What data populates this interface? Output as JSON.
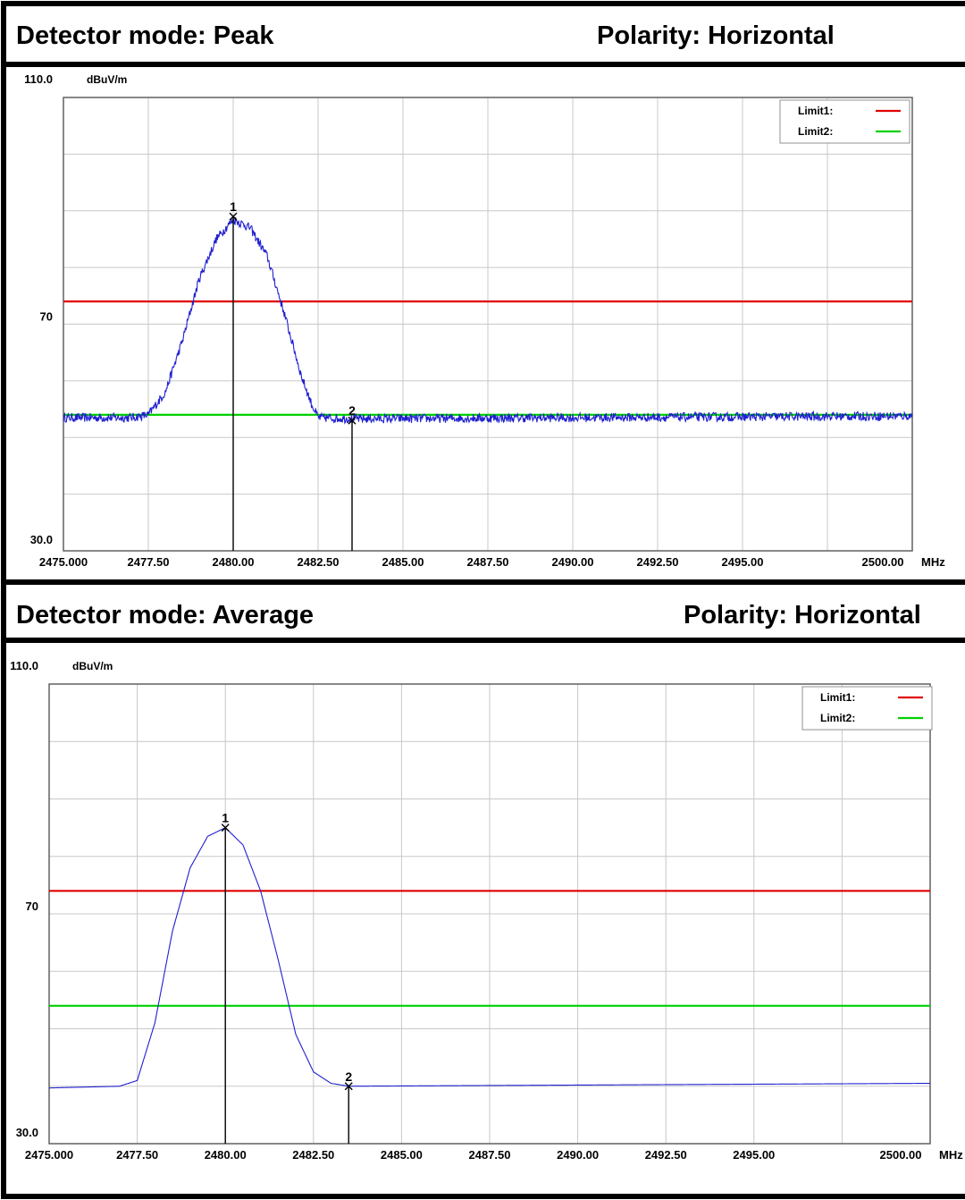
{
  "panels": [
    {
      "detector_label": "Detector mode: Peak",
      "polarity_label": "Polarity: Horizontal"
    },
    {
      "detector_label": "Detector mode: Average",
      "polarity_label": "Polarity: Horizontal"
    }
  ],
  "colors": {
    "limit1": "#e00000",
    "limit2": "#00d000",
    "trace": "#2020d0",
    "grid": "#c8c8c8",
    "marker": "#000000"
  },
  "chart_data": [
    {
      "type": "line",
      "ylabel": "dBuV/m",
      "xlabel": "MHz",
      "xlim": [
        2475.0,
        2500.0
      ],
      "ylim": [
        30.0,
        110.0
      ],
      "y_tick_labels": [
        "110.0",
        "70",
        "30.0"
      ],
      "y_tick_values": [
        110.0,
        70.0,
        30.0
      ],
      "x_tick_labels": [
        "2475.000",
        "2477.50",
        "2480.00",
        "2482.50",
        "2485.00",
        "2487.50",
        "2490.00",
        "2492.50",
        "2495.00",
        "2500.00"
      ],
      "x_tick_values": [
        2475.0,
        2477.5,
        2480.0,
        2482.5,
        2485.0,
        2487.5,
        2490.0,
        2492.5,
        2495.0,
        2500.0
      ],
      "grid": true,
      "legend": {
        "placement": "top-right",
        "entries": [
          "Limit1:",
          "Limit2:"
        ]
      },
      "limits": [
        {
          "name": "Limit1:",
          "value": 74.0
        },
        {
          "name": "Limit2:",
          "value": 54.0
        }
      ],
      "markers": [
        {
          "label": "1",
          "x": 2480.0,
          "y": 89.0
        },
        {
          "label": "2",
          "x": 2483.5,
          "y": 53.0
        }
      ],
      "series": [
        {
          "noise": 0.8,
          "points": [
            [
              2475.0,
              53.5
            ],
            [
              2477.0,
              53.5
            ],
            [
              2477.5,
              54.0
            ],
            [
              2478.0,
              58.0
            ],
            [
              2478.5,
              67.0
            ],
            [
              2479.0,
              78.0
            ],
            [
              2479.5,
              85.0
            ],
            [
              2480.0,
              88.5
            ],
            [
              2480.5,
              87.0
            ],
            [
              2481.0,
              82.0
            ],
            [
              2481.5,
              72.0
            ],
            [
              2482.0,
              61.0
            ],
            [
              2482.3,
              56.0
            ],
            [
              2482.5,
              53.5
            ],
            [
              2483.5,
              53.3
            ],
            [
              2500.0,
              53.8
            ]
          ]
        }
      ]
    },
    {
      "type": "line",
      "ylabel": "dBuV/m",
      "xlabel": "MHz",
      "xlim": [
        2475.0,
        2500.0
      ],
      "ylim": [
        30.0,
        110.0
      ],
      "y_tick_labels": [
        "110.0",
        "70",
        "30.0"
      ],
      "y_tick_values": [
        110.0,
        70.0,
        30.0
      ],
      "x_tick_labels": [
        "2475.000",
        "2477.50",
        "2480.00",
        "2482.50",
        "2485.00",
        "2487.50",
        "2490.00",
        "2492.50",
        "2495.00",
        "2500.00"
      ],
      "x_tick_values": [
        2475.0,
        2477.5,
        2480.0,
        2482.5,
        2485.0,
        2487.5,
        2490.0,
        2492.5,
        2495.0,
        2500.0
      ],
      "grid": true,
      "legend": {
        "placement": "top-right",
        "entries": [
          "Limit1:",
          "Limit2:"
        ]
      },
      "limits": [
        {
          "name": "Limit1:",
          "value": 74.0
        },
        {
          "name": "Limit2:",
          "value": 54.0
        }
      ],
      "markers": [
        {
          "label": "1",
          "x": 2480.0,
          "y": 85.0
        },
        {
          "label": "2",
          "x": 2483.5,
          "y": 40.0
        }
      ],
      "series": [
        {
          "noise": 0,
          "points": [
            [
              2475.0,
              39.7
            ],
            [
              2477.0,
              40.0
            ],
            [
              2477.5,
              41.0
            ],
            [
              2478.0,
              51.0
            ],
            [
              2478.5,
              67.0
            ],
            [
              2479.0,
              78.0
            ],
            [
              2479.5,
              83.5
            ],
            [
              2480.0,
              85.0
            ],
            [
              2480.5,
              82.0
            ],
            [
              2481.0,
              74.0
            ],
            [
              2481.5,
              62.0
            ],
            [
              2482.0,
              49.0
            ],
            [
              2482.5,
              42.5
            ],
            [
              2483.0,
              40.5
            ],
            [
              2483.5,
              40.0
            ],
            [
              2490.0,
              40.2
            ],
            [
              2500.0,
              40.5
            ]
          ]
        }
      ]
    }
  ]
}
